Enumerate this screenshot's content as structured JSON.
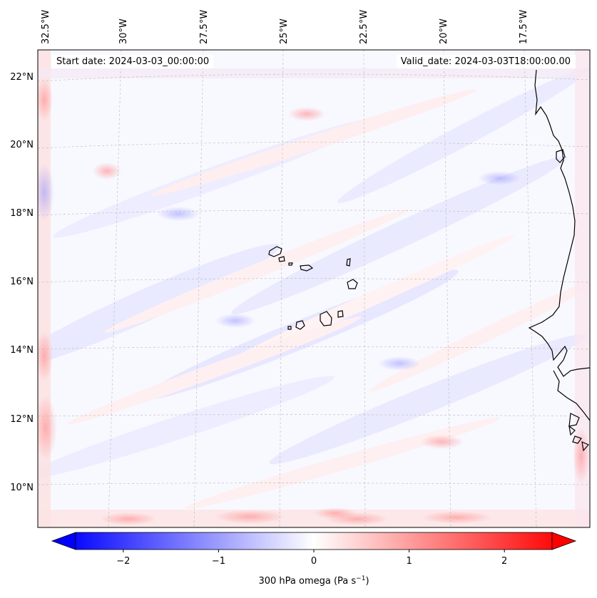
{
  "map": {
    "start_label": "Start date: 2024-03-03_00:00:00",
    "valid_label": "Valid_date: 2024-03-03T18:00:00.00",
    "longitude_labels": [
      "32.5°W",
      "30°W",
      "27.5°W",
      "25°W",
      "22.5°W",
      "20°W",
      "17.5°W"
    ],
    "latitude_labels": [
      "22°N",
      "20°N",
      "18°N",
      "16°N",
      "14°N",
      "12°N",
      "10°N"
    ],
    "field": "300 hPa omega",
    "region": "Cabo Verde / West African coast",
    "extent": {
      "lon_min": -33.0,
      "lon_max": -15.0,
      "lat_min": 8.8,
      "lat_max": 22.8
    }
  },
  "colorbar": {
    "label_prefix": "300 hPa omega (Pa s",
    "label_exp": "−1",
    "label_suffix": ")",
    "ticks": [
      "−2",
      "−1",
      "0",
      "1",
      "2"
    ],
    "tick_values": [
      -2,
      -1,
      0,
      1,
      2
    ],
    "range": [
      -2.5,
      2.5
    ],
    "colormap": "bwr",
    "low_color": "#0000ff",
    "mid_color": "#ffffff",
    "high_color": "#ff0000",
    "extend": "both"
  }
}
